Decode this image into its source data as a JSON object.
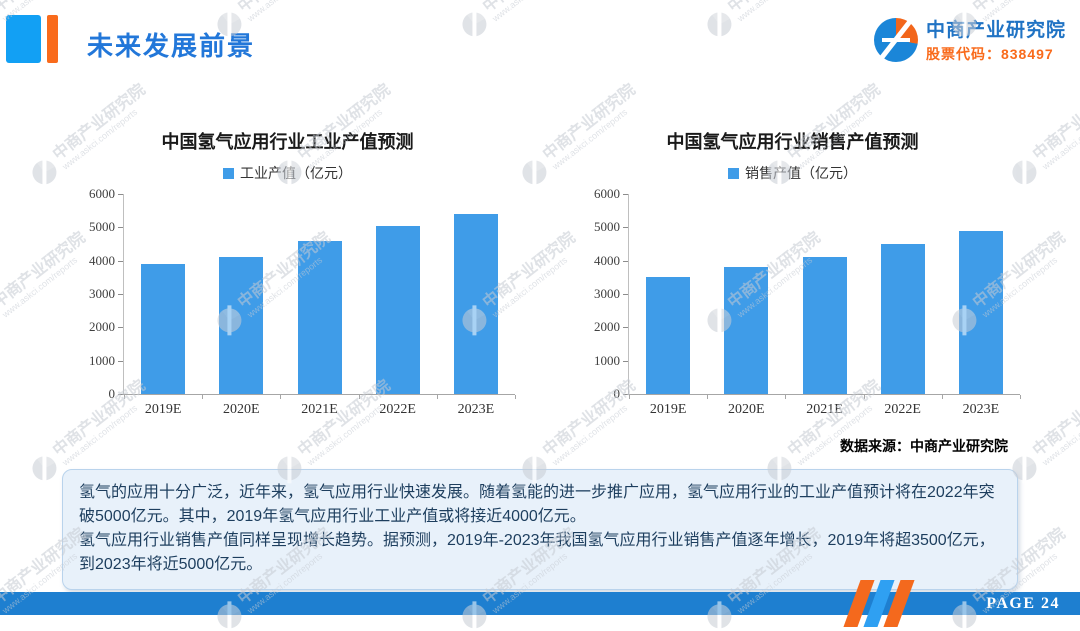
{
  "header": {
    "title": "未来发展前景",
    "brand": {
      "name": "中商产业研究院",
      "stock_code": "股票代码：838497"
    }
  },
  "watermark": {
    "line1": "中商产业研究院",
    "line2": "www.askci.com/reports"
  },
  "chart_data": [
    {
      "type": "bar",
      "title": "中国氢气应用行业工业产值预测",
      "legend": "工业产值（亿元）",
      "categories": [
        "2019E",
        "2020E",
        "2021E",
        "2022E",
        "2023E"
      ],
      "values": [
        3900,
        4100,
        4600,
        5050,
        5400
      ],
      "xlabel": "",
      "ylabel": "",
      "ylim": [
        0,
        6000
      ],
      "ytick_step": 1000,
      "grid": false,
      "legend_position": "top",
      "bar_color": "#3F9CE8"
    },
    {
      "type": "bar",
      "title": "中国氢气应用行业销售产值预测",
      "legend": "销售产值（亿元）",
      "categories": [
        "2019E",
        "2020E",
        "2021E",
        "2022E",
        "2023E"
      ],
      "values": [
        3500,
        3800,
        4100,
        4500,
        4900
      ],
      "xlabel": "",
      "ylabel": "",
      "ylim": [
        0,
        6000
      ],
      "ytick_step": 1000,
      "grid": false,
      "legend_position": "top",
      "bar_color": "#3F9CE8"
    }
  ],
  "source_note": "数据来源：中商产业研究院",
  "info_box": {
    "paragraphs": [
      "氢气的应用十分广泛，近年来，氢气应用行业快速发展。随着氢能的进一步推广应用，氢气应用行业的工业产值预计将在2022年突破5000亿元。其中，2019年氢气应用行业工业产值或将接近4000亿元。",
      "氢气应用行业销售产值同样呈现增长趋势。据预测，2019年-2023年我国氢气应用行业销售产值逐年增长，2019年将超3500亿元，到2023年将近5000亿元。"
    ]
  },
  "footer": {
    "page_label": "PAGE 24"
  },
  "colors": {
    "accent_blue": "#12A0F4",
    "accent_orange": "#F96B1C",
    "title_blue": "#2277D9",
    "bar_blue": "#3F9CE8",
    "footer_blue": "#1E7FD0",
    "stripe_orange": "#F4691D",
    "stripe_blue": "#2FA0F2",
    "info_text": "#1D3E5E",
    "info_bg": "#E8F1FA"
  }
}
